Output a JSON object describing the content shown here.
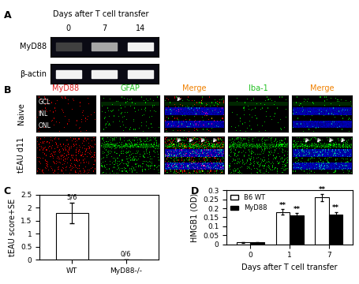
{
  "panel_labels": [
    "A",
    "B",
    "C",
    "D"
  ],
  "blot": {
    "xlabel": "Days after T cell transfer",
    "lanes": [
      "0",
      "7",
      "14"
    ],
    "rows": [
      "MyD88",
      "β-actin"
    ]
  },
  "images": {
    "columns": [
      {
        "label": "MyD88",
        "color": "#e02020"
      },
      {
        "label": "GFAP",
        "color": "#20c020"
      },
      {
        "label": "Merge",
        "color": "#f08000"
      },
      {
        "label": "Iba-1",
        "color": "#20c020"
      },
      {
        "label": "Merge",
        "color": "#f08000"
      }
    ],
    "rows": [
      "Naive",
      "tEAU d11"
    ],
    "layers": [
      "GCL",
      "INL",
      "ONL"
    ]
  },
  "chart_data": [
    {
      "type": "bar",
      "categories": [
        "WT",
        "MyD88-/-"
      ],
      "values": [
        1.8,
        0
      ],
      "errors": [
        0.4,
        0
      ],
      "color": "#ffffff",
      "ylabel": "tEAU score+SE",
      "ylim": [
        0,
        2.5
      ],
      "yticks": [
        0,
        0.5,
        1,
        1.5,
        2,
        2.5
      ],
      "annotations": [
        {
          "text": "5/6",
          "category": "WT"
        },
        {
          "text": "0/6",
          "category": "MyD88-/-"
        }
      ]
    },
    {
      "type": "bar",
      "categories": [
        "0",
        "1",
        "7"
      ],
      "xlabel": "Days after T cell transfer",
      "ylabel": "HMGB1 (OD)",
      "series": [
        {
          "name": "B6 WT",
          "color": "#ffffff",
          "values": [
            0.01,
            0.18,
            0.26
          ],
          "errors": [
            0.003,
            0.015,
            0.02
          ]
        },
        {
          "name": "MyD88",
          "color": "#000000",
          "values": [
            0.01,
            0.16,
            0.165
          ],
          "errors": [
            0.003,
            0.012,
            0.015
          ]
        }
      ],
      "ylim": [
        0,
        0.3
      ],
      "yticks": [
        0,
        0.05,
        0.1,
        0.15,
        0.2,
        0.25,
        0.3
      ],
      "legend": "upper left",
      "annotations": [
        {
          "text": "**",
          "category": "1",
          "series": "B6 WT"
        },
        {
          "text": "**",
          "category": "1",
          "series": "MyD88"
        },
        {
          "text": "**",
          "category": "7",
          "series": "B6 WT"
        },
        {
          "text": "**",
          "category": "7",
          "series": "MyD88"
        }
      ]
    }
  ]
}
